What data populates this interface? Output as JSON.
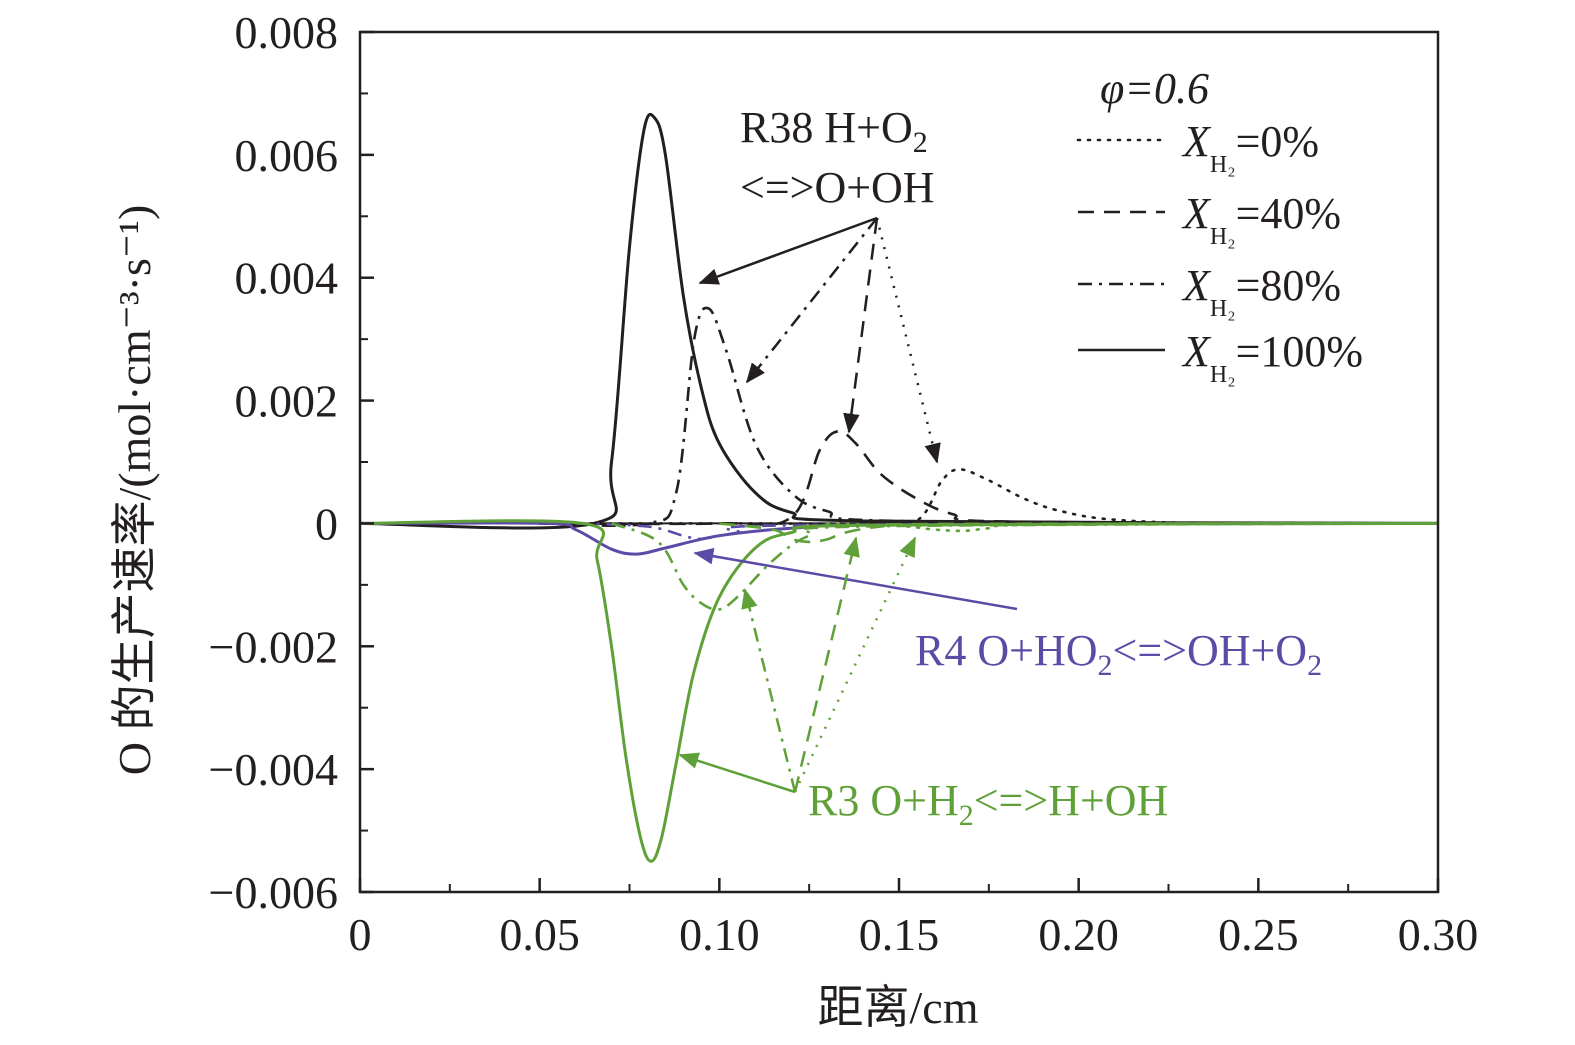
{
  "chart_data": {
    "type": "line",
    "xlabel": "距离/cm",
    "ylabel": "O 的生产速率/(mol·cm⁻³·s⁻¹)",
    "xlim": [
      0,
      0.3
    ],
    "ylim": [
      -0.006,
      0.008
    ],
    "x_ticks": [
      "0",
      "0.05",
      "0.10",
      "0.15",
      "0.20",
      "0.25",
      "0.30"
    ],
    "y_ticks": [
      "0.008",
      "0.006",
      "0.004",
      "0.002",
      "0",
      "−0.002",
      "−0.004",
      "−0.006"
    ],
    "grid": false,
    "legend_position": "top-right",
    "legend_header": "φ=0.6",
    "legend": [
      {
        "label": "X",
        "sub": "H₂",
        "value": "=0%",
        "style": "dotted"
      },
      {
        "label": "X",
        "sub": "H₂",
        "value": "=40%",
        "style": "dashed"
      },
      {
        "label": "X",
        "sub": "H₂",
        "value": "=80%",
        "style": "dashdot"
      },
      {
        "label": "X",
        "sub": "H₂",
        "value": "=100%",
        "style": "solid"
      }
    ],
    "colors": {
      "R38": "#231f20",
      "R4": "#5b4ba6",
      "R3": "#5fa138"
    },
    "annotations": [
      {
        "id": "R38",
        "text": "R38 H+O₂ <=>O+OH"
      },
      {
        "id": "R4",
        "text": "R4 O+HO₂<=>OH+O₂"
      },
      {
        "id": "R3",
        "text": "R3 O+H₂<=>H+OH"
      }
    ],
    "series": [
      {
        "reaction": "R38",
        "case": "X_H2=0%",
        "style": "dotted",
        "color": "#231f20",
        "x": [
          0.05,
          0.1,
          0.14,
          0.155,
          0.162,
          0.167,
          0.175,
          0.185,
          0.195,
          0.21,
          0.24,
          0.3
        ],
        "y": [
          0,
          0,
          0.0,
          5e-05,
          0.0007,
          0.00088,
          0.0007,
          0.0004,
          0.0002,
          6e-05,
          0,
          0
        ]
      },
      {
        "reaction": "R38",
        "case": "X_H2=40%",
        "style": "dashed",
        "color": "#231f20",
        "x": [
          0.05,
          0.1,
          0.12,
          0.128,
          0.133,
          0.138,
          0.145,
          0.155,
          0.165,
          0.18,
          0.3
        ],
        "y": [
          0,
          0,
          0.0001,
          0.0012,
          0.0015,
          0.0013,
          0.0008,
          0.0004,
          0.00015,
          3e-05,
          0
        ]
      },
      {
        "reaction": "R38",
        "case": "X_H2=80%",
        "style": "dashdot",
        "color": "#231f20",
        "x": [
          0.05,
          0.08,
          0.088,
          0.093,
          0.097,
          0.102,
          0.11,
          0.12,
          0.13,
          0.15,
          0.3
        ],
        "y": [
          0,
          0,
          0.0005,
          0.003,
          0.0035,
          0.0028,
          0.0013,
          0.0005,
          0.0002,
          4e-05,
          0
        ]
      },
      {
        "reaction": "R38",
        "case": "X_H2=100%",
        "style": "solid",
        "color": "#231f20",
        "x": [
          0,
          0.065,
          0.07,
          0.075,
          0.079,
          0.082,
          0.085,
          0.09,
          0.095,
          0.1,
          0.11,
          0.12,
          0.14,
          0.3
        ],
        "y": [
          0,
          0,
          0.001,
          0.0045,
          0.0064,
          0.0066,
          0.006,
          0.0037,
          0.0022,
          0.0013,
          0.0005,
          0.00018,
          4e-05,
          0
        ]
      },
      {
        "reaction": "R4",
        "case": "X_H2=100%",
        "style": "solid",
        "color": "#5b4ba6",
        "x": [
          0,
          0.052,
          0.06,
          0.07,
          0.077,
          0.085,
          0.1,
          0.12,
          0.15,
          0.3
        ],
        "y": [
          0,
          0,
          -0.0001,
          -0.00042,
          -0.0005,
          -0.0004,
          -0.0002,
          -8e-05,
          -2e-05,
          0
        ]
      },
      {
        "reaction": "R4",
        "case": "X_H2=80%",
        "style": "dashdot",
        "color": "#5b4ba6",
        "x": [
          0.06,
          0.08,
          0.09,
          0.095,
          0.105,
          0.12,
          0.3
        ],
        "y": [
          0,
          -5e-05,
          -0.0002,
          -0.00025,
          -0.00015,
          -3e-05,
          0
        ]
      },
      {
        "reaction": "R3",
        "case": "X_H2=100%",
        "style": "solid",
        "color": "#5fa138",
        "x": [
          0,
          0.062,
          0.066,
          0.07,
          0.074,
          0.078,
          0.081,
          0.084,
          0.088,
          0.093,
          0.1,
          0.11,
          0.12,
          0.14,
          0.3
        ],
        "y": [
          0,
          0,
          -0.0006,
          -0.002,
          -0.0038,
          -0.0051,
          -0.0055,
          -0.0051,
          -0.0039,
          -0.0024,
          -0.0012,
          -0.0004,
          -0.00015,
          -3e-05,
          0
        ]
      },
      {
        "reaction": "R3",
        "case": "X_H2=80%",
        "style": "dashdot",
        "color": "#5fa138",
        "x": [
          0.07,
          0.083,
          0.09,
          0.095,
          0.1,
          0.105,
          0.115,
          0.125,
          0.14,
          0.3
        ],
        "y": [
          0,
          -0.0003,
          -0.001,
          -0.0013,
          -0.0014,
          -0.0012,
          -0.0006,
          -0.0002,
          -5e-05,
          0
        ]
      },
      {
        "reaction": "R3",
        "case": "X_H2=40%",
        "style": "dashed",
        "color": "#5fa138",
        "x": [
          0.1,
          0.115,
          0.12,
          0.125,
          0.13,
          0.135,
          0.145,
          0.16,
          0.3
        ],
        "y": [
          0,
          -0.0001,
          -0.00025,
          -0.0003,
          -0.00026,
          -0.00015,
          -5e-05,
          -1e-05,
          0
        ]
      },
      {
        "reaction": "R3",
        "case": "X_H2=0%",
        "style": "dotted",
        "color": "#5fa138",
        "x": [
          0.13,
          0.15,
          0.16,
          0.168,
          0.175,
          0.19,
          0.3
        ],
        "y": [
          0,
          -4e-05,
          -0.0001,
          -0.00012,
          -8e-05,
          -2e-05,
          0
        ]
      }
    ]
  }
}
